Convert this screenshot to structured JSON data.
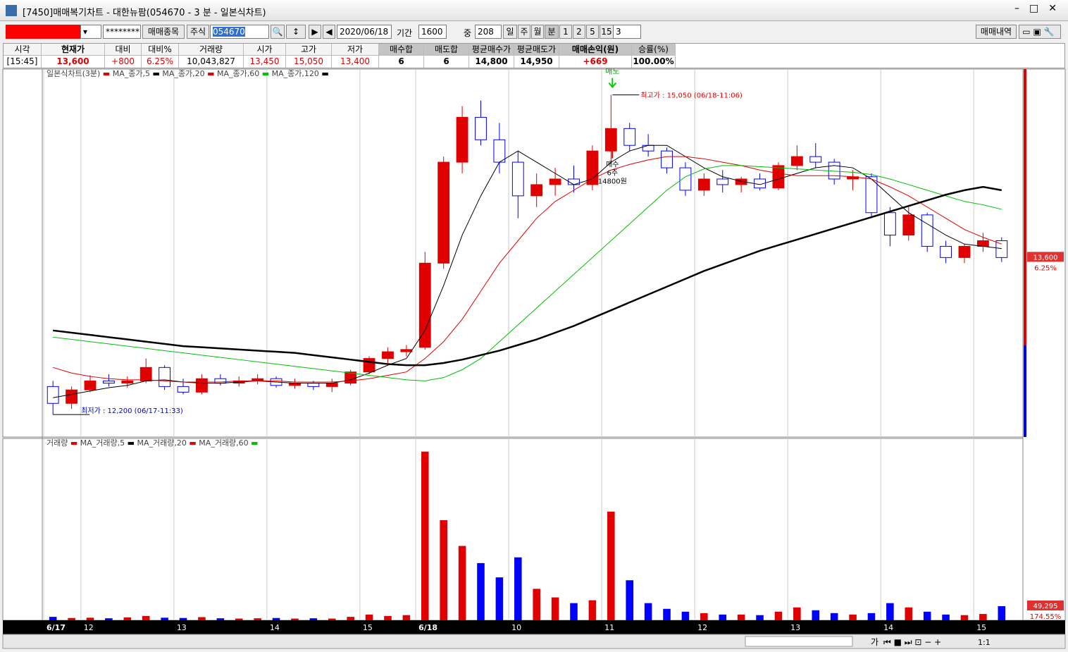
{
  "window": {
    "title": "[7450]매매복기차트 - 대한뉴팜(054670 - 3 분 - 일본식차트)"
  },
  "toolbar": {
    "password": "********",
    "trade_item_button": "매매종목",
    "market": "주식",
    "code": "054670",
    "date": "2020/06/18",
    "period_label": "기간",
    "period": "1600",
    "count_label": "중",
    "count": "208",
    "units": [
      "일",
      "주",
      "월",
      "분",
      "1",
      "2",
      "5",
      "15"
    ],
    "unit_value": "3",
    "history_button": "매매내역"
  },
  "info_table": {
    "headers": [
      "시각",
      "현재가",
      "대비",
      "대비%",
      "거래량",
      "시가",
      "고가",
      "저가",
      "매수합",
      "매도합",
      "평균매수가",
      "평균매도가",
      "매매손익(원)",
      "승률(%)"
    ],
    "values": [
      "[15:45]",
      "13,600",
      "+800",
      "6.25%",
      "10,043,827",
      "13,450",
      "15,050",
      "13,400",
      "6",
      "6",
      "14,800",
      "14,950",
      "+669",
      "100.00%"
    ]
  },
  "chart_data": [
    {
      "type": "candlestick",
      "title": "일본식차트(3분)",
      "title_color": "#e00000",
      "categories": [
        "6/17",
        null,
        "12",
        null,
        null,
        null,
        null,
        "13",
        null,
        null,
        null,
        null,
        "14",
        null,
        null,
        null,
        null,
        "15",
        null,
        null,
        "6/18",
        null,
        null,
        null,
        null,
        "10",
        null,
        null,
        null,
        null,
        "11",
        null,
        null,
        null,
        null,
        "12",
        null,
        null,
        null,
        null,
        "13",
        null,
        null,
        null,
        null,
        "14",
        null,
        null,
        null,
        null,
        "15",
        null
      ],
      "open": [
        12450,
        12300,
        12420,
        12500,
        12480,
        12500,
        12620,
        12450,
        12400,
        12520,
        12480,
        12500,
        12520,
        12460,
        12480,
        12450,
        12480,
        12580,
        12700,
        12760,
        12800,
        13550,
        14450,
        14850,
        14650,
        14450,
        14150,
        14250,
        14300,
        14250,
        14550,
        14750,
        14600,
        14550,
        14400,
        14200,
        14300,
        14250,
        14300,
        14220,
        14420,
        14500,
        14450,
        14300,
        14320,
        14000,
        13800,
        13980,
        13700,
        13600,
        13700,
        13750
      ],
      "high": [
        12500,
        12450,
        12550,
        12560,
        12540,
        12700,
        12640,
        12520,
        12560,
        12560,
        12540,
        12560,
        12540,
        12520,
        12500,
        12520,
        12600,
        12720,
        12800,
        12820,
        13650,
        14500,
        14950,
        15000,
        14800,
        14550,
        14350,
        14400,
        14420,
        14600,
        15050,
        14800,
        14700,
        14580,
        14450,
        14350,
        14380,
        14320,
        14350,
        14450,
        14600,
        14620,
        14480,
        14380,
        14350,
        14050,
        14050,
        14000,
        13750,
        13720,
        13820,
        13780
      ],
      "low": [
        12200,
        12250,
        12400,
        12450,
        12440,
        12480,
        12420,
        12380,
        12380,
        12460,
        12450,
        12470,
        12440,
        12430,
        12420,
        12400,
        12460,
        12560,
        12650,
        12720,
        12780,
        13500,
        14350,
        14600,
        14350,
        13950,
        14050,
        14150,
        14180,
        14200,
        14450,
        14550,
        14500,
        14350,
        14150,
        14150,
        14180,
        14180,
        14200,
        14200,
        14380,
        14400,
        14250,
        14200,
        13950,
        13700,
        13750,
        13650,
        13550,
        13550,
        13650,
        13560
      ],
      "close": [
        12300,
        12420,
        12500,
        12480,
        12500,
        12620,
        12450,
        12400,
        12520,
        12480,
        12500,
        12520,
        12460,
        12480,
        12450,
        12480,
        12580,
        12700,
        12760,
        12780,
        13550,
        14450,
        14850,
        14650,
        14450,
        14150,
        14250,
        14300,
        14250,
        14550,
        14750,
        14600,
        14550,
        14400,
        14200,
        14300,
        14250,
        14300,
        14220,
        14420,
        14500,
        14450,
        14300,
        14320,
        14000,
        13800,
        13980,
        13700,
        13600,
        13700,
        13750,
        13600
      ],
      "up_color": "#e00000",
      "down_color": "#0000ff",
      "series": [
        {
          "name": "MA_종가,5",
          "color": "#000000",
          "width": 1,
          "values": [
            12350,
            12380,
            12410,
            12440,
            12460,
            12500,
            12510,
            12490,
            12480,
            12480,
            12490,
            12500,
            12490,
            12480,
            12480,
            12480,
            12510,
            12570,
            12640,
            12700,
            12950,
            13350,
            13800,
            14150,
            14450,
            14550,
            14450,
            14350,
            14250,
            14300,
            14450,
            14550,
            14600,
            14600,
            14500,
            14400,
            14320,
            14280,
            14250,
            14300,
            14350,
            14400,
            14420,
            14400,
            14300,
            14150,
            14000,
            13900,
            13800,
            13720,
            13700,
            13680
          ]
        },
        {
          "name": "MA_종가,20",
          "color": "#e00000",
          "width": 1,
          "values": [
            12620,
            12570,
            12540,
            12520,
            12510,
            12510,
            12500,
            12490,
            12490,
            12490,
            12500,
            12500,
            12500,
            12490,
            12490,
            12490,
            12500,
            12520,
            12550,
            12580,
            12700,
            12850,
            13050,
            13300,
            13550,
            13750,
            13950,
            14100,
            14200,
            14300,
            14380,
            14430,
            14470,
            14500,
            14500,
            14480,
            14450,
            14420,
            14380,
            14350,
            14330,
            14330,
            14330,
            14320,
            14300,
            14230,
            14150,
            14050,
            13950,
            13850,
            13780,
            13720
          ]
        },
        {
          "name": "MA_종가,60",
          "color": "#00c000",
          "width": 1,
          "values": [
            12890,
            12870,
            12850,
            12830,
            12810,
            12790,
            12770,
            12750,
            12730,
            12710,
            12690,
            12670,
            12650,
            12630,
            12610,
            12590,
            12570,
            12550,
            12530,
            12510,
            12500,
            12530,
            12600,
            12700,
            12850,
            13000,
            13150,
            13300,
            13450,
            13600,
            13750,
            13900,
            14050,
            14200,
            14320,
            14390,
            14420,
            14420,
            14410,
            14400,
            14390,
            14380,
            14370,
            14360,
            14340,
            14300,
            14250,
            14200,
            14150,
            14100,
            14070,
            14030
          ]
        },
        {
          "name": "MA_종가,120",
          "color": "#000000",
          "width": 2.5,
          "values": [
            12950,
            12930,
            12910,
            12890,
            12870,
            12850,
            12830,
            12810,
            12800,
            12790,
            12780,
            12770,
            12760,
            12750,
            12730,
            12710,
            12690,
            12670,
            12650,
            12640,
            12640,
            12660,
            12690,
            12730,
            12770,
            12820,
            12870,
            12930,
            12990,
            13060,
            13130,
            13200,
            13270,
            13340,
            13410,
            13480,
            13540,
            13600,
            13660,
            13710,
            13760,
            13810,
            13860,
            13910,
            13960,
            14010,
            14060,
            14110,
            14160,
            14200,
            14230,
            14200
          ]
        }
      ],
      "ylim": [
        12000,
        15280
      ],
      "annotations": {
        "high": "최고가 : 15,050 (06/18-11:06)",
        "low": "최저가 : 12,200 (06/17-11:33)",
        "sell": "매도",
        "buy": "매수",
        "buy_qty": "6주",
        "buy_price": "14800원"
      },
      "last_label": "13,600",
      "change_label": "6.25%"
    },
    {
      "type": "bar",
      "title": "거래량",
      "title_color": "#e00000",
      "legend": [
        {
          "name": "MA_거래량,5",
          "color": "#000000"
        },
        {
          "name": "MA_거래량,20",
          "color": "#e00000"
        },
        {
          "name": "MA_거래량,60",
          "color": "#00c000"
        }
      ],
      "values": [
        12000,
        8000,
        9000,
        7000,
        10000,
        15000,
        9000,
        8000,
        11000,
        7000,
        6000,
        7000,
        8000,
        6000,
        7000,
        6000,
        12000,
        20000,
        15000,
        18000,
        590000,
        350000,
        260000,
        200000,
        150000,
        220000,
        110000,
        80000,
        60000,
        70000,
        380000,
        140000,
        60000,
        40000,
        30000,
        25000,
        20000,
        20000,
        18000,
        30000,
        45000,
        35000,
        25000,
        20000,
        25000,
        60000,
        45000,
        30000,
        20000,
        18000,
        22000,
        49295
      ],
      "ylim": [
        0,
        636000
      ],
      "last_label": "49,295",
      "ratio_label": "174.55%"
    }
  ],
  "scrollbar": {
    "font_button": "가",
    "zoom": "1:1"
  }
}
